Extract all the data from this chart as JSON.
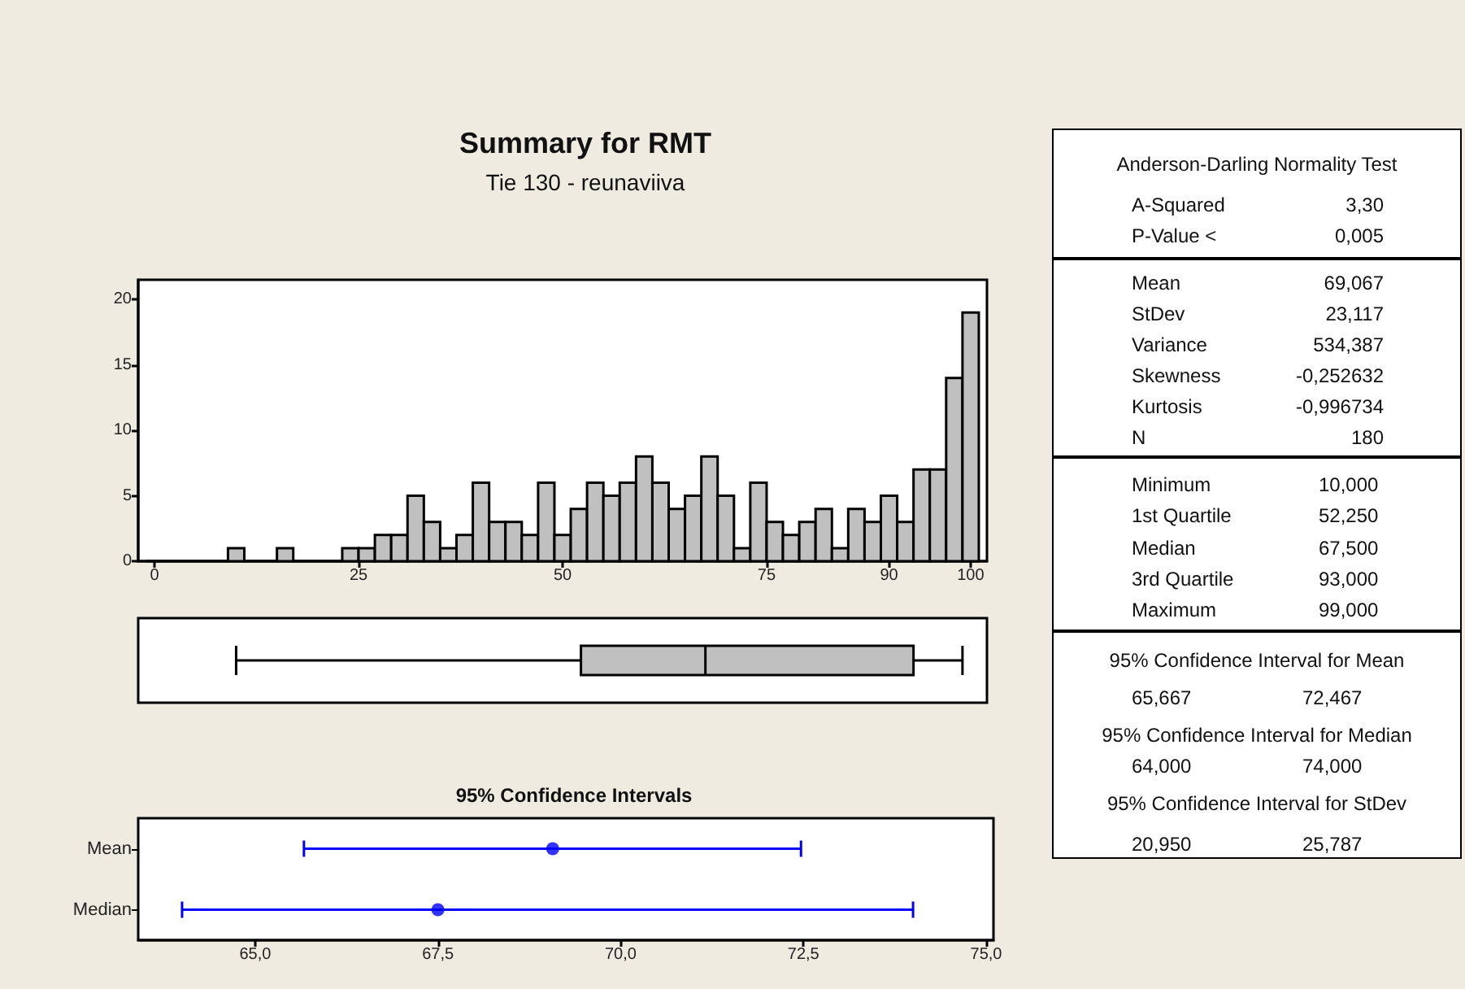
{
  "chart_data": [
    {
      "type": "histogram",
      "title": "Summary for RMT",
      "subtitle": "Tie 130 - reunaviiva",
      "color": "#c0c0c0",
      "bins": [
        -1,
        1,
        3,
        5,
        7,
        9,
        11,
        13,
        15,
        17,
        19,
        21,
        23,
        25,
        27,
        29,
        31,
        33,
        35,
        37,
        39,
        41,
        43,
        45,
        47,
        49,
        51,
        53,
        55,
        57,
        59,
        61,
        63,
        65,
        67,
        69,
        71,
        73,
        75,
        77,
        79,
        81,
        83,
        85,
        87,
        89,
        91,
        93,
        95,
        97,
        99,
        101
      ],
      "values": [
        0,
        0,
        0,
        0,
        0,
        1,
        0,
        0,
        1,
        0,
        0,
        0,
        1,
        1,
        2,
        2,
        5,
        3,
        1,
        2,
        6,
        3,
        3,
        2,
        6,
        2,
        4,
        6,
        5,
        6,
        8,
        6,
        4,
        5,
        8,
        5,
        1,
        6,
        3,
        2,
        3,
        4,
        1,
        4,
        3,
        5,
        3,
        7,
        7,
        14,
        19
      ],
      "xlim": [
        -2,
        102
      ],
      "xticks": [
        0,
        25,
        50,
        75,
        90,
        100
      ],
      "ylim": [
        0,
        21.5
      ],
      "yticks": [
        0,
        5,
        10,
        15,
        20
      ]
    },
    {
      "type": "box",
      "orientation": "horizontal",
      "categories": [
        null
      ],
      "color": "#c0c0c0",
      "boxes": [
        {
          "low": 10,
          "q1": 52.25,
          "median": 67.5,
          "q3": 93,
          "high": 99
        }
      ],
      "xlim": [
        -2,
        102
      ]
    },
    {
      "type": "scatter",
      "title": "95% Confidence Intervals",
      "orientation": "horizontal",
      "categories": [
        "Mean",
        "Median"
      ],
      "color": "#0000ff",
      "marker": "circle",
      "values": [
        69.07,
        67.5
      ],
      "errors": [
        [
          65.667,
          72.467
        ],
        [
          64,
          74
        ]
      ],
      "xlim": [
        63.4,
        75.1
      ],
      "xticks": [
        {
          "value": 65,
          "label": "65,0"
        },
        {
          "value": 67.5,
          "label": "67,5"
        },
        {
          "value": 70,
          "label": "70,0"
        },
        {
          "value": 72.5,
          "label": "72,5"
        },
        {
          "value": 75,
          "label": "75,0"
        }
      ]
    },
    {
      "type": "other",
      "annotations": [
        "Anderson-Darling Normality Test",
        "A-Squared",
        "3,30",
        "P-Value <",
        "0,005",
        "Mean",
        "69,067",
        "StDev",
        "23,117",
        "Variance",
        "534,387",
        "Skewness",
        "-0,252632",
        "Kurtosis",
        "-0,996734",
        "N",
        "180",
        "Minimum",
        "10,000",
        "1st Quartile",
        "52,250",
        "Median",
        "67,500",
        "3rd Quartile",
        "93,000",
        "Maximum",
        "99,000",
        "95% Confidence Interval for Mean",
        "65,667",
        "72,467",
        "95% Confidence Interval for Median",
        "64,000",
        "74,000",
        "95% Confidence Interval for StDev",
        "20,950",
        "25,787"
      ]
    }
  ]
}
